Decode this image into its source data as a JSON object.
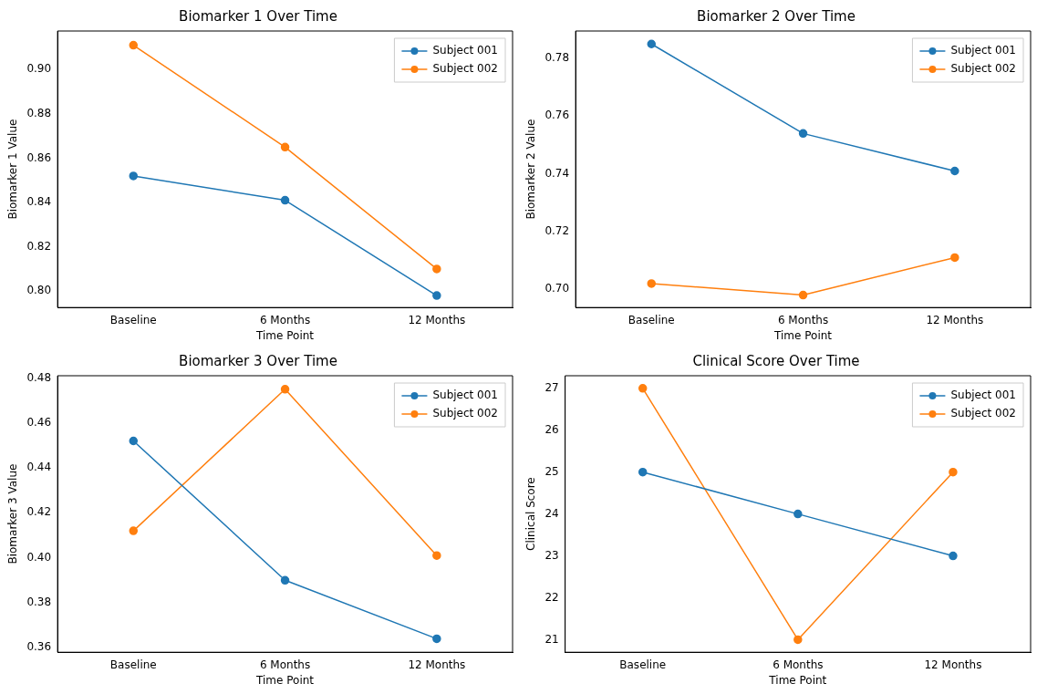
{
  "chart_data": [
    {
      "type": "line",
      "title": "Biomarker 1 Over Time",
      "xlabel": "Time Point",
      "ylabel": "Biomarker 1 Value",
      "categories": [
        "Baseline",
        "6 Months",
        "12 Months"
      ],
      "ylim": [
        0.7926,
        0.9174
      ],
      "yticks": [
        {
          "value": 0.8,
          "label": "0.80"
        },
        {
          "value": 0.82,
          "label": "0.82"
        },
        {
          "value": 0.84,
          "label": "0.84"
        },
        {
          "value": 0.86,
          "label": "0.86"
        },
        {
          "value": 0.88,
          "label": "0.88"
        },
        {
          "value": 0.9,
          "label": "0.90"
        }
      ],
      "grid": false,
      "legend": "top right",
      "marker": "circle",
      "line_style": "solid",
      "series": [
        {
          "name": "Subject 001",
          "color": "#1f77b4",
          "values": [
            0.852,
            0.841,
            0.798
          ]
        },
        {
          "name": "Subject 002",
          "color": "#ff7f0e",
          "values": [
            0.911,
            0.865,
            0.81
          ]
        }
      ]
    },
    {
      "type": "line",
      "title": "Biomarker 2 Over Time",
      "xlabel": "Time Point",
      "ylabel": "Biomarker 2 Value",
      "categories": [
        "Baseline",
        "6 Months",
        "12 Months"
      ],
      "ylim": [
        0.6937,
        0.7895
      ],
      "yticks": [
        {
          "value": 0.7,
          "label": "0.70"
        },
        {
          "value": 0.72,
          "label": "0.72"
        },
        {
          "value": 0.74,
          "label": "0.74"
        },
        {
          "value": 0.76,
          "label": "0.76"
        },
        {
          "value": 0.78,
          "label": "0.78"
        }
      ],
      "grid": false,
      "legend": "top right",
      "marker": "circle",
      "line_style": "solid",
      "series": [
        {
          "name": "Subject 001",
          "color": "#1f77b4",
          "values": [
            0.785,
            0.754,
            0.741
          ]
        },
        {
          "name": "Subject 002",
          "color": "#ff7f0e",
          "values": [
            0.702,
            0.698,
            0.711
          ]
        }
      ]
    },
    {
      "type": "line",
      "title": "Biomarker 3 Over Time",
      "xlabel": "Time Point",
      "ylabel": "Biomarker 3 Value",
      "categories": [
        "Baseline",
        "6 Months",
        "12 Months"
      ],
      "ylim": [
        0.358,
        0.481
      ],
      "yticks": [
        {
          "value": 0.36,
          "label": "0.36"
        },
        {
          "value": 0.38,
          "label": "0.38"
        },
        {
          "value": 0.4,
          "label": "0.40"
        },
        {
          "value": 0.42,
          "label": "0.42"
        },
        {
          "value": 0.44,
          "label": "0.44"
        },
        {
          "value": 0.46,
          "label": "0.46"
        },
        {
          "value": 0.48,
          "label": "0.48"
        }
      ],
      "grid": false,
      "legend": "top right",
      "marker": "circle",
      "line_style": "solid",
      "series": [
        {
          "name": "Subject 001",
          "color": "#1f77b4",
          "values": [
            0.452,
            0.39,
            0.364
          ]
        },
        {
          "name": "Subject 002",
          "color": "#ff7f0e",
          "values": [
            0.412,
            0.475,
            0.401
          ]
        }
      ]
    },
    {
      "type": "line",
      "title": "Clinical Score Over Time",
      "xlabel": "Time Point",
      "ylabel": "Clinical Score",
      "categories": [
        "Baseline",
        "6 Months",
        "12 Months"
      ],
      "ylim": [
        20.7,
        27.3
      ],
      "yticks": [
        21,
        22,
        23,
        24,
        25,
        26,
        27
      ],
      "grid": false,
      "legend": "top right",
      "marker": "circle",
      "line_style": "solid",
      "series": [
        {
          "name": "Subject 001",
          "color": "#1f77b4",
          "values": [
            25,
            24,
            23
          ]
        },
        {
          "name": "Subject 002",
          "color": "#ff7f0e",
          "values": [
            27,
            21,
            25
          ]
        }
      ]
    }
  ]
}
